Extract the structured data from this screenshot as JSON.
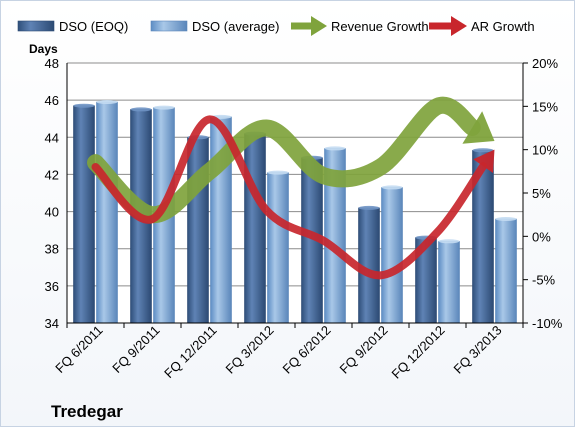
{
  "chart_data": {
    "type": "bar",
    "categories": [
      "FQ 6/2011",
      "FQ 9/2011",
      "FQ 12/2011",
      "FQ 3/2012",
      "FQ 6/2012",
      "FQ 9/2012",
      "FQ 12/2012",
      "FQ 3/2013"
    ],
    "series": [
      {
        "name": "DSO (EOQ)",
        "kind": "bar",
        "axis": "left",
        "color": "#4a6ea0",
        "values": [
          45.7,
          45.5,
          44.0,
          44.2,
          42.9,
          40.2,
          38.6,
          43.3
        ]
      },
      {
        "name": "DSO (average)",
        "kind": "bar",
        "axis": "left",
        "color": "#7ea7d4",
        "values": [
          45.9,
          45.6,
          45.1,
          42.1,
          43.4,
          41.3,
          38.4,
          39.6
        ]
      },
      {
        "name": "Revenue Growth",
        "kind": "arrow",
        "axis": "right",
        "color": "#7fa33c",
        "values": [
          8.5,
          2.5,
          7.5,
          12.5,
          7.0,
          8.0,
          15.0,
          11.0
        ]
      },
      {
        "name": "AR Growth",
        "kind": "arrow",
        "axis": "right",
        "color": "#c8262c",
        "values": [
          8.0,
          2.0,
          13.5,
          3.0,
          -0.5,
          -4.5,
          0.5,
          10.0
        ]
      }
    ],
    "ylabel": "Days",
    "ylim": [
      34,
      48
    ],
    "yticks": [
      "48",
      "46",
      "44",
      "42",
      "40",
      "38",
      "36",
      "34"
    ],
    "y2lim": [
      -10,
      20
    ],
    "y2ticks": [
      "20%",
      "15%",
      "10%",
      "5%",
      "0%",
      "-5%",
      "-10%"
    ],
    "grid": true,
    "legend": "top",
    "company": "Tredegar"
  }
}
